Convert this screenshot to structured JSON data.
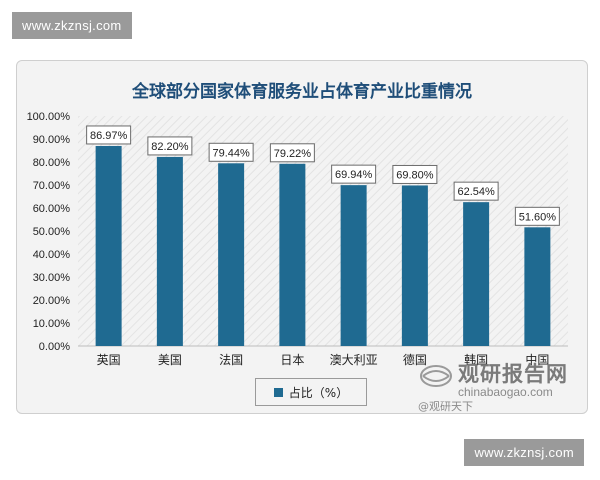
{
  "site_watermark": "www.zkznsj.com",
  "chart_data": {
    "type": "bar",
    "title": "全球部分国家体育服务业占体育产业比重情况",
    "categories": [
      "英国",
      "美国",
      "法国",
      "日本",
      "澳大利亚",
      "德国",
      "韩国",
      "中国"
    ],
    "series": [
      {
        "name": "占比（%）",
        "values": [
          86.97,
          82.2,
          79.44,
          79.22,
          69.94,
          69.8,
          62.54,
          51.6
        ]
      }
    ],
    "data_labels": [
      "86.97%",
      "82.20%",
      "79.44%",
      "79.22%",
      "69.94%",
      "69.80%",
      "62.54%",
      "51.60%"
    ],
    "y_ticks": [
      "0.00%",
      "10.00%",
      "20.00%",
      "30.00%",
      "40.00%",
      "50.00%",
      "60.00%",
      "70.00%",
      "80.00%",
      "90.00%",
      "100.00%"
    ],
    "ylim": [
      0,
      100
    ],
    "xlabel": "",
    "ylabel": "",
    "legend_position": "bottom",
    "grid": false,
    "colors": {
      "bar": "#1f6a91",
      "title": "#1f4e79"
    }
  },
  "watermark": {
    "title": "观研报告网",
    "domain": "chinabaogao.com",
    "handle": "@观研天下"
  }
}
